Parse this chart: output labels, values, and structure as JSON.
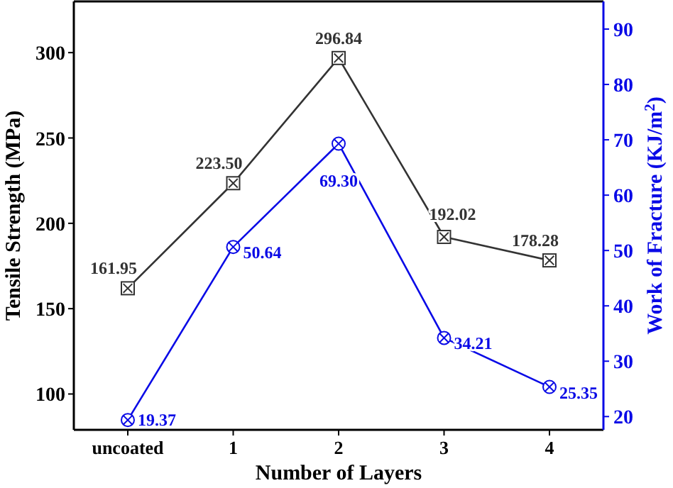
{
  "chart_data": {
    "type": "line",
    "categories": [
      "uncoated",
      "1",
      "2",
      "3",
      "4"
    ],
    "xlabel": "Number of Layers",
    "ylabel": "Tensile Strength (MPa)",
    "y2label": "Work of Fracture (KJ/m$^{2}$)",
    "ylim": [
      79,
      330
    ],
    "yticks": [
      100,
      150,
      200,
      250,
      300
    ],
    "y2lim": [
      17.6,
      95
    ],
    "y2ticks": [
      20,
      30,
      40,
      50,
      60,
      70,
      80,
      90
    ],
    "grid": false,
    "line_style": "solid",
    "series": [
      {
        "color": "#333333",
        "marker": "square",
        "values": [
          161.95,
          223.5,
          296.84,
          192.02,
          178.28
        ],
        "value_labels": [
          "161.95",
          "223.50",
          "296.84",
          "192.02",
          "178.28"
        ]
      },
      {
        "color": "#0a0ae6",
        "marker": "circle",
        "axis": "y2",
        "values": [
          19.37,
          50.64,
          69.3,
          34.21,
          25.35
        ],
        "value_labels": [
          "19.37",
          "50.64",
          "69.30",
          "34.21",
          "25.35"
        ]
      }
    ]
  }
}
